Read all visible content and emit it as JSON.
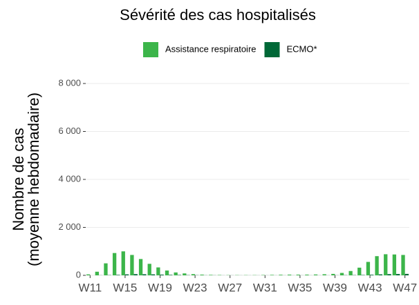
{
  "chart_data": {
    "type": "bar",
    "title": "Sévérité des cas hospitalisés",
    "y_label": [
      "Nombre de cas",
      "(moyenne hebdomadaire)"
    ],
    "categories": [
      "W11",
      null,
      null,
      null,
      "W15",
      null,
      null,
      null,
      "W19",
      null,
      null,
      null,
      "W23",
      null,
      null,
      null,
      "W27",
      null,
      null,
      null,
      "W31",
      null,
      null,
      null,
      "W35",
      null,
      null,
      null,
      "W39",
      null,
      null,
      null,
      "W43",
      null,
      null,
      null,
      "W47"
    ],
    "series": [
      {
        "name": "Assistance respiratoire",
        "color": "#3cb54a",
        "values": [
          40,
          150,
          500,
          930,
          1000,
          850,
          680,
          480,
          330,
          200,
          120,
          80,
          50,
          30,
          20,
          15,
          10,
          10,
          10,
          10,
          15,
          20,
          25,
          30,
          30,
          30,
          35,
          45,
          60,
          100,
          180,
          320,
          560,
          800,
          880,
          870,
          850
        ]
      },
      {
        "name": "ECMO*",
        "color": "#006837",
        "values": [
          0,
          5,
          10,
          20,
          40,
          50,
          45,
          40,
          30,
          20,
          15,
          10,
          8,
          5,
          5,
          3,
          3,
          3,
          3,
          3,
          3,
          3,
          3,
          3,
          3,
          3,
          3,
          3,
          5,
          8,
          10,
          15,
          25,
          40,
          50,
          55,
          60
        ]
      }
    ],
    "ylim": [
      0,
      8000
    ],
    "yticks": [
      0,
      {
        "value": 2000,
        "label": "2 000"
      },
      {
        "value": 4000,
        "label": "4 000"
      },
      {
        "value": 6000,
        "label": "6 000"
      },
      {
        "value": 8000,
        "label": "8 000"
      }
    ],
    "grid": true,
    "legend": "top"
  }
}
